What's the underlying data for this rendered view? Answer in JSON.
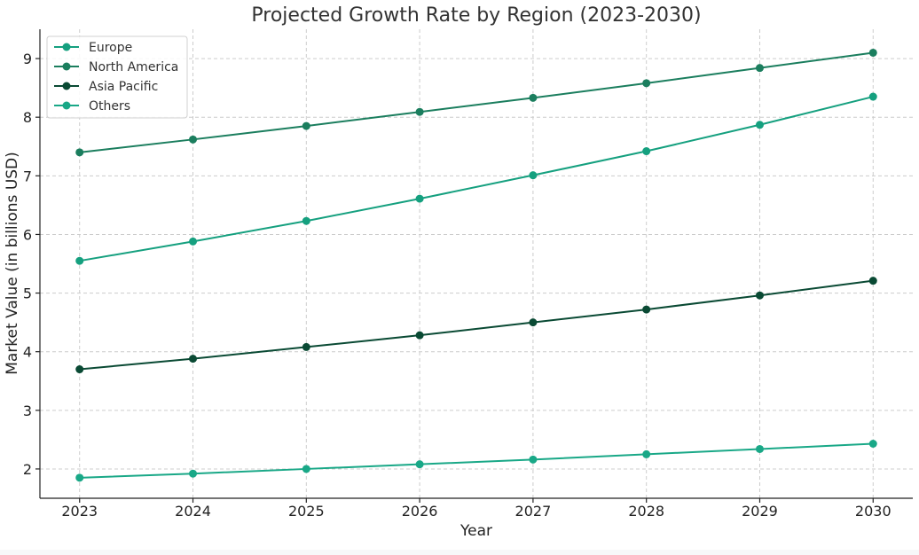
{
  "chart_data": {
    "type": "line",
    "title": "Projected Growth Rate by Region (2023-2030)",
    "xlabel": "Year",
    "ylabel": "Market Value (in billions USD)",
    "x": [
      2023,
      2024,
      2025,
      2026,
      2027,
      2028,
      2029,
      2030
    ],
    "xlim": [
      2022.65,
      2030.35
    ],
    "ylim": [
      1.5,
      9.5
    ],
    "yticks": [
      2,
      3,
      4,
      5,
      6,
      7,
      8,
      9
    ],
    "grid": true,
    "legend_position": "top-left",
    "series": [
      {
        "name": "Europe",
        "color": "#15a07f",
        "values": [
          5.55,
          5.88,
          6.23,
          6.61,
          7.01,
          7.42,
          7.87,
          8.35
        ]
      },
      {
        "name": "North America",
        "color": "#1b7e5e",
        "values": [
          7.4,
          7.62,
          7.85,
          8.09,
          8.33,
          8.58,
          8.84,
          9.1
        ]
      },
      {
        "name": "Asia Pacific",
        "color": "#0a4a34",
        "values": [
          3.7,
          3.88,
          4.08,
          4.28,
          4.5,
          4.72,
          4.96,
          5.21
        ]
      },
      {
        "name": "Others",
        "color": "#19a887",
        "values": [
          1.85,
          1.92,
          2.0,
          2.08,
          2.16,
          2.25,
          2.34,
          2.43
        ]
      }
    ]
  }
}
